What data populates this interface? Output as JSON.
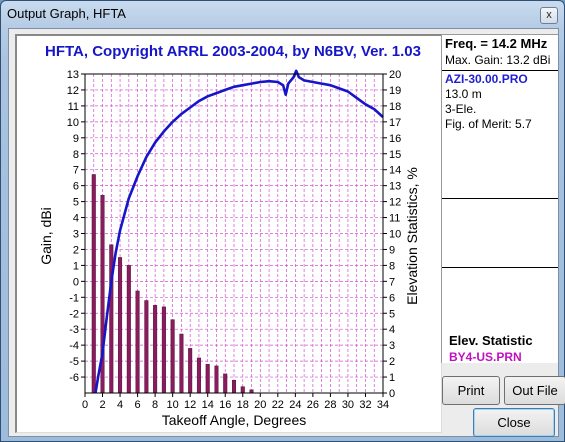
{
  "window": {
    "title": "Output Graph, HFTA",
    "close_glyph": "x"
  },
  "chart_data": {
    "type": "bar",
    "title": "HFTA, Copyright ARRL 2003-2004, by N6BV, Ver. 1.03",
    "xlabel": "Takeoff Angle, Degrees",
    "ylabel": "Gain, dBi",
    "y2label": "Elevation Statistics, %",
    "xlim": [
      0,
      34
    ],
    "ylim": [
      -7,
      13
    ],
    "y2lim": [
      0,
      20
    ],
    "x_ticks": [
      "0",
      "2",
      "4",
      "6",
      "8",
      "10",
      "12",
      "14",
      "16",
      "18",
      "20",
      "22",
      "24",
      "26",
      "28",
      "30",
      "32",
      "34"
    ],
    "y_ticks": [
      "13",
      "12",
      "11",
      "10",
      "9",
      "8",
      "7",
      "6",
      "5",
      "4",
      "3",
      "2",
      "1",
      "0",
      "-1",
      "-2",
      "-3",
      "-4",
      "-5",
      "-6"
    ],
    "y2_ticks": [
      "20",
      "19",
      "18",
      "17",
      "16",
      "15",
      "14",
      "13",
      "12",
      "11",
      "10",
      "9",
      "8",
      "7",
      "6",
      "5",
      "4",
      "3",
      "2",
      "1",
      "0"
    ],
    "grid": true,
    "series": [
      {
        "kind": "bar",
        "axis": "right",
        "color": "#8b1a5e",
        "x": [
          1,
          2,
          3,
          4,
          5,
          6,
          7,
          8,
          9,
          10,
          11,
          12,
          13,
          14,
          15,
          16,
          17,
          18,
          19
        ],
        "values": [
          13.7,
          12.4,
          9.3,
          8.5,
          8.0,
          6.4,
          5.8,
          5.5,
          5.4,
          4.6,
          3.7,
          2.8,
          2.2,
          1.8,
          1.7,
          1.2,
          0.8,
          0.4,
          0.2
        ]
      },
      {
        "kind": "line",
        "axis": "left",
        "color": "#1616c8",
        "x": [
          1.2,
          1.5,
          2,
          2.5,
          3,
          3.5,
          4,
          5,
          6,
          7,
          8,
          9,
          10,
          11,
          12,
          13,
          14,
          15,
          16,
          17,
          18,
          19,
          20,
          21,
          22,
          22.6,
          22.9,
          23.2,
          23.8,
          24.1,
          24.4,
          25,
          26,
          27,
          28,
          29,
          30,
          31,
          32,
          33,
          34
        ],
        "y": [
          -7,
          -6,
          -4.5,
          -2.2,
          0,
          1.8,
          3.2,
          5.2,
          6.6,
          7.8,
          8.7,
          9.4,
          10.0,
          10.5,
          10.9,
          11.3,
          11.6,
          11.8,
          12.0,
          12.2,
          12.3,
          12.4,
          12.5,
          12.55,
          12.5,
          12.3,
          11.7,
          12.4,
          12.8,
          13.2,
          12.8,
          12.6,
          12.5,
          12.4,
          12.3,
          12.1,
          11.9,
          11.5,
          11.1,
          10.8,
          10.3
        ]
      }
    ]
  },
  "panel": {
    "freq": "Freq. = 14.2 MHz",
    "max_gain": "Max. Gain: 13.2 dBi",
    "file": "AZI-30.00.PRO",
    "height": "13.0 m",
    "elements": "3-Ele.",
    "merit": "Fig. of Merit:  5.7"
  },
  "elev": {
    "title": "Elev. Statistic",
    "file": "BY4-US.PRN"
  },
  "buttons": {
    "print": "Print",
    "outfile": "Out File",
    "close": "Close"
  }
}
